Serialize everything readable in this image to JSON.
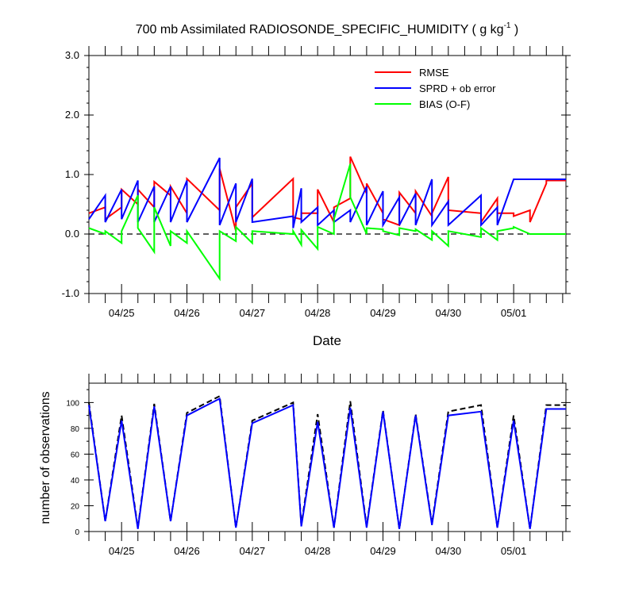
{
  "title_main": "700 mb Assimilated RADIOSONDE_SPECIFIC_HUMIDITY ( g kg",
  "title_sup": "-1",
  "title_end": " )",
  "chart_data": [
    {
      "type": "line",
      "title": "700 mb Assimilated RADIOSONDE_SPECIFIC_HUMIDITY ( g kg-1 )",
      "xlabel": "Date",
      "ylabel": "",
      "xlim": [
        0,
        7.3
      ],
      "ylim": [
        -1.0,
        3.0
      ],
      "yticks": [
        -1.0,
        0.0,
        1.0,
        2.0,
        3.0
      ],
      "ytick_labels": [
        "-1.0",
        "0.0",
        "1.0",
        "2.0",
        "3.0"
      ],
      "x_tick_positions": [
        0.5,
        1.5,
        2.5,
        3.5,
        4.5,
        5.5,
        6.5
      ],
      "x_tick_labels": [
        "04/25",
        "04/26",
        "04/27",
        "04/28",
        "04/29",
        "04/30",
        "05/01"
      ],
      "reference_line": 0.0,
      "legend_position": "top-right",
      "series": [
        {
          "name": "RMSE",
          "color": "#ff0000",
          "x": [
            0,
            0.25,
            0.25,
            0.5,
            0.5,
            0.75,
            0.75,
            1,
            1,
            1.25,
            1.25,
            1.5,
            1.5,
            2,
            2,
            2.25,
            2.25,
            2.5,
            2.5,
            3.125,
            3.125,
            3.25,
            3.25,
            3.5,
            3.5,
            3.75,
            3.75,
            4,
            4,
            4.25,
            4.25,
            4.5,
            4.5,
            4.75,
            4.75,
            5,
            5,
            5.25,
            5.25,
            5.5,
            5.5,
            6,
            6,
            6.25,
            6.25,
            6.5,
            6.5,
            6.75,
            6.75,
            7,
            7,
            7.25,
            7.25,
            7.3
          ],
          "y": [
            0.35,
            0.45,
            0.25,
            0.45,
            0.75,
            0.5,
            0.75,
            0.45,
            0.88,
            0.65,
            0.8,
            0.35,
            0.93,
            0.4,
            1.1,
            0.05,
            0.45,
            0.85,
            0.28,
            0.93,
            0.28,
            0.25,
            0.35,
            0.35,
            0.75,
            0.2,
            0.45,
            0.6,
            1.3,
            0.68,
            0.85,
            0.35,
            0.25,
            0.15,
            0.7,
            0.35,
            0.72,
            0.3,
            0.35,
            0.96,
            0.4,
            0.35,
            0.2,
            0.6,
            0.35,
            0.35,
            0.3,
            0.4,
            0.2,
            0.85,
            0.9,
            0.9,
            0.9,
            0.9
          ]
        },
        {
          "name": "SPRD + ob error",
          "color": "#0000ff",
          "x": [
            0,
            0.25,
            0.25,
            0.5,
            0.5,
            0.75,
            0.75,
            1,
            1,
            1.25,
            1.25,
            1.5,
            1.5,
            2,
            2,
            2.25,
            2.25,
            2.5,
            2.5,
            3.125,
            3.125,
            3.25,
            3.25,
            3.5,
            3.5,
            3.75,
            3.75,
            4,
            4,
            4.25,
            4.25,
            4.5,
            4.5,
            4.75,
            4.75,
            5,
            5,
            5.25,
            5.25,
            5.5,
            5.5,
            6,
            6,
            6.25,
            6.25,
            6.5,
            6.5,
            6.75,
            6.75,
            7,
            7,
            7.25,
            7.25,
            7.3
          ],
          "y": [
            0.25,
            0.65,
            0.2,
            0.75,
            0.25,
            0.9,
            0.2,
            0.8,
            0.2,
            0.8,
            0.2,
            0.9,
            0.2,
            1.28,
            0.15,
            0.85,
            0.2,
            0.93,
            0.2,
            0.3,
            0.1,
            0.77,
            0.2,
            0.45,
            0.15,
            0.4,
            0.2,
            0.4,
            0.2,
            0.8,
            0.15,
            0.72,
            0.15,
            0.62,
            0.15,
            0.68,
            0.15,
            0.92,
            0.15,
            0.55,
            0.15,
            0.65,
            0.15,
            0.45,
            0.15,
            0.92,
            0.92,
            0.92,
            0.92,
            0.92,
            0.92,
            0.92,
            0.92,
            0.92
          ]
        },
        {
          "name": "BIAS (O-F)",
          "color": "#00ff00",
          "x": [
            0,
            0.25,
            0.25,
            0.5,
            0.5,
            0.75,
            0.75,
            1,
            1,
            1.25,
            1.25,
            1.5,
            1.5,
            2,
            2,
            2.25,
            2.25,
            2.5,
            2.5,
            3.125,
            3.125,
            3.25,
            3.25,
            3.5,
            3.5,
            3.75,
            3.75,
            4,
            4,
            4.25,
            4.25,
            4.5,
            4.5,
            4.75,
            4.75,
            5,
            5,
            5.25,
            5.25,
            5.5,
            5.5,
            6,
            6,
            6.25,
            6.25,
            6.5,
            6.5,
            6.75,
            6.75,
            7,
            7,
            7.25,
            7.25,
            7.3
          ],
          "y": [
            0.1,
            0.0,
            0.05,
            -0.15,
            0.05,
            0.65,
            0.1,
            -0.3,
            0.45,
            -0.2,
            0.05,
            -0.15,
            0.05,
            -0.75,
            0.05,
            -0.12,
            0.12,
            -0.15,
            0.05,
            0.0,
            0.05,
            -0.18,
            0.07,
            -0.25,
            0.12,
            0.0,
            0.25,
            1.18,
            0.62,
            0.0,
            0.1,
            0.08,
            0.05,
            -0.02,
            0.1,
            0.05,
            0.08,
            -0.1,
            0.05,
            -0.2,
            0.05,
            -0.05,
            0.1,
            -0.1,
            0.05,
            0.1,
            0.12,
            0.0,
            0.0,
            0.0,
            0.0,
            0.0,
            0.0,
            0.0
          ]
        }
      ]
    },
    {
      "type": "line",
      "title": "",
      "xlabel": "",
      "ylabel": "number of observations",
      "xlim": [
        0,
        7.3
      ],
      "ylim": [
        0,
        115
      ],
      "yticks": [
        0,
        20,
        40,
        60,
        80,
        100
      ],
      "ytick_labels": [
        "0",
        "20",
        "40",
        "60",
        "80",
        "100"
      ],
      "x_tick_positions": [
        0.5,
        1.5,
        2.5,
        3.5,
        4.5,
        5.5,
        6.5
      ],
      "x_tick_labels": [
        "04/25",
        "04/26",
        "04/27",
        "04/28",
        "04/29",
        "04/30",
        "05/01"
      ],
      "series": [
        {
          "name": "",
          "color": "#000000",
          "dash": true,
          "x": [
            0,
            0.25,
            0.5,
            0.75,
            1,
            1.25,
            1.5,
            2,
            2.25,
            2.5,
            3.125,
            3.25,
            3.5,
            3.75,
            4,
            4.25,
            4.5,
            4.75,
            5,
            5.25,
            5.5,
            6,
            6.25,
            6.5,
            6.75,
            7,
            7.3
          ],
          "y": [
            100,
            8,
            90,
            3,
            99,
            8,
            92,
            105,
            3,
            86,
            100,
            5,
            91,
            3,
            101,
            4,
            94,
            2,
            91,
            6,
            93,
            98,
            3,
            90,
            2,
            98,
            98
          ]
        },
        {
          "name": "",
          "color": "#0000ff",
          "dash": false,
          "x": [
            0,
            0.25,
            0.5,
            0.75,
            1,
            1.25,
            1.5,
            2,
            2.25,
            2.5,
            3.125,
            3.25,
            3.5,
            3.75,
            4,
            4.25,
            4.5,
            4.75,
            5,
            5.25,
            5.5,
            6,
            6.25,
            6.5,
            6.75,
            7,
            7.3
          ],
          "y": [
            98,
            8,
            86,
            2,
            97,
            8,
            90,
            103,
            3,
            84,
            98,
            4,
            85,
            3,
            96,
            3,
            93,
            2,
            90,
            5,
            90,
            93,
            3,
            86,
            2,
            95,
            95
          ]
        }
      ]
    }
  ]
}
